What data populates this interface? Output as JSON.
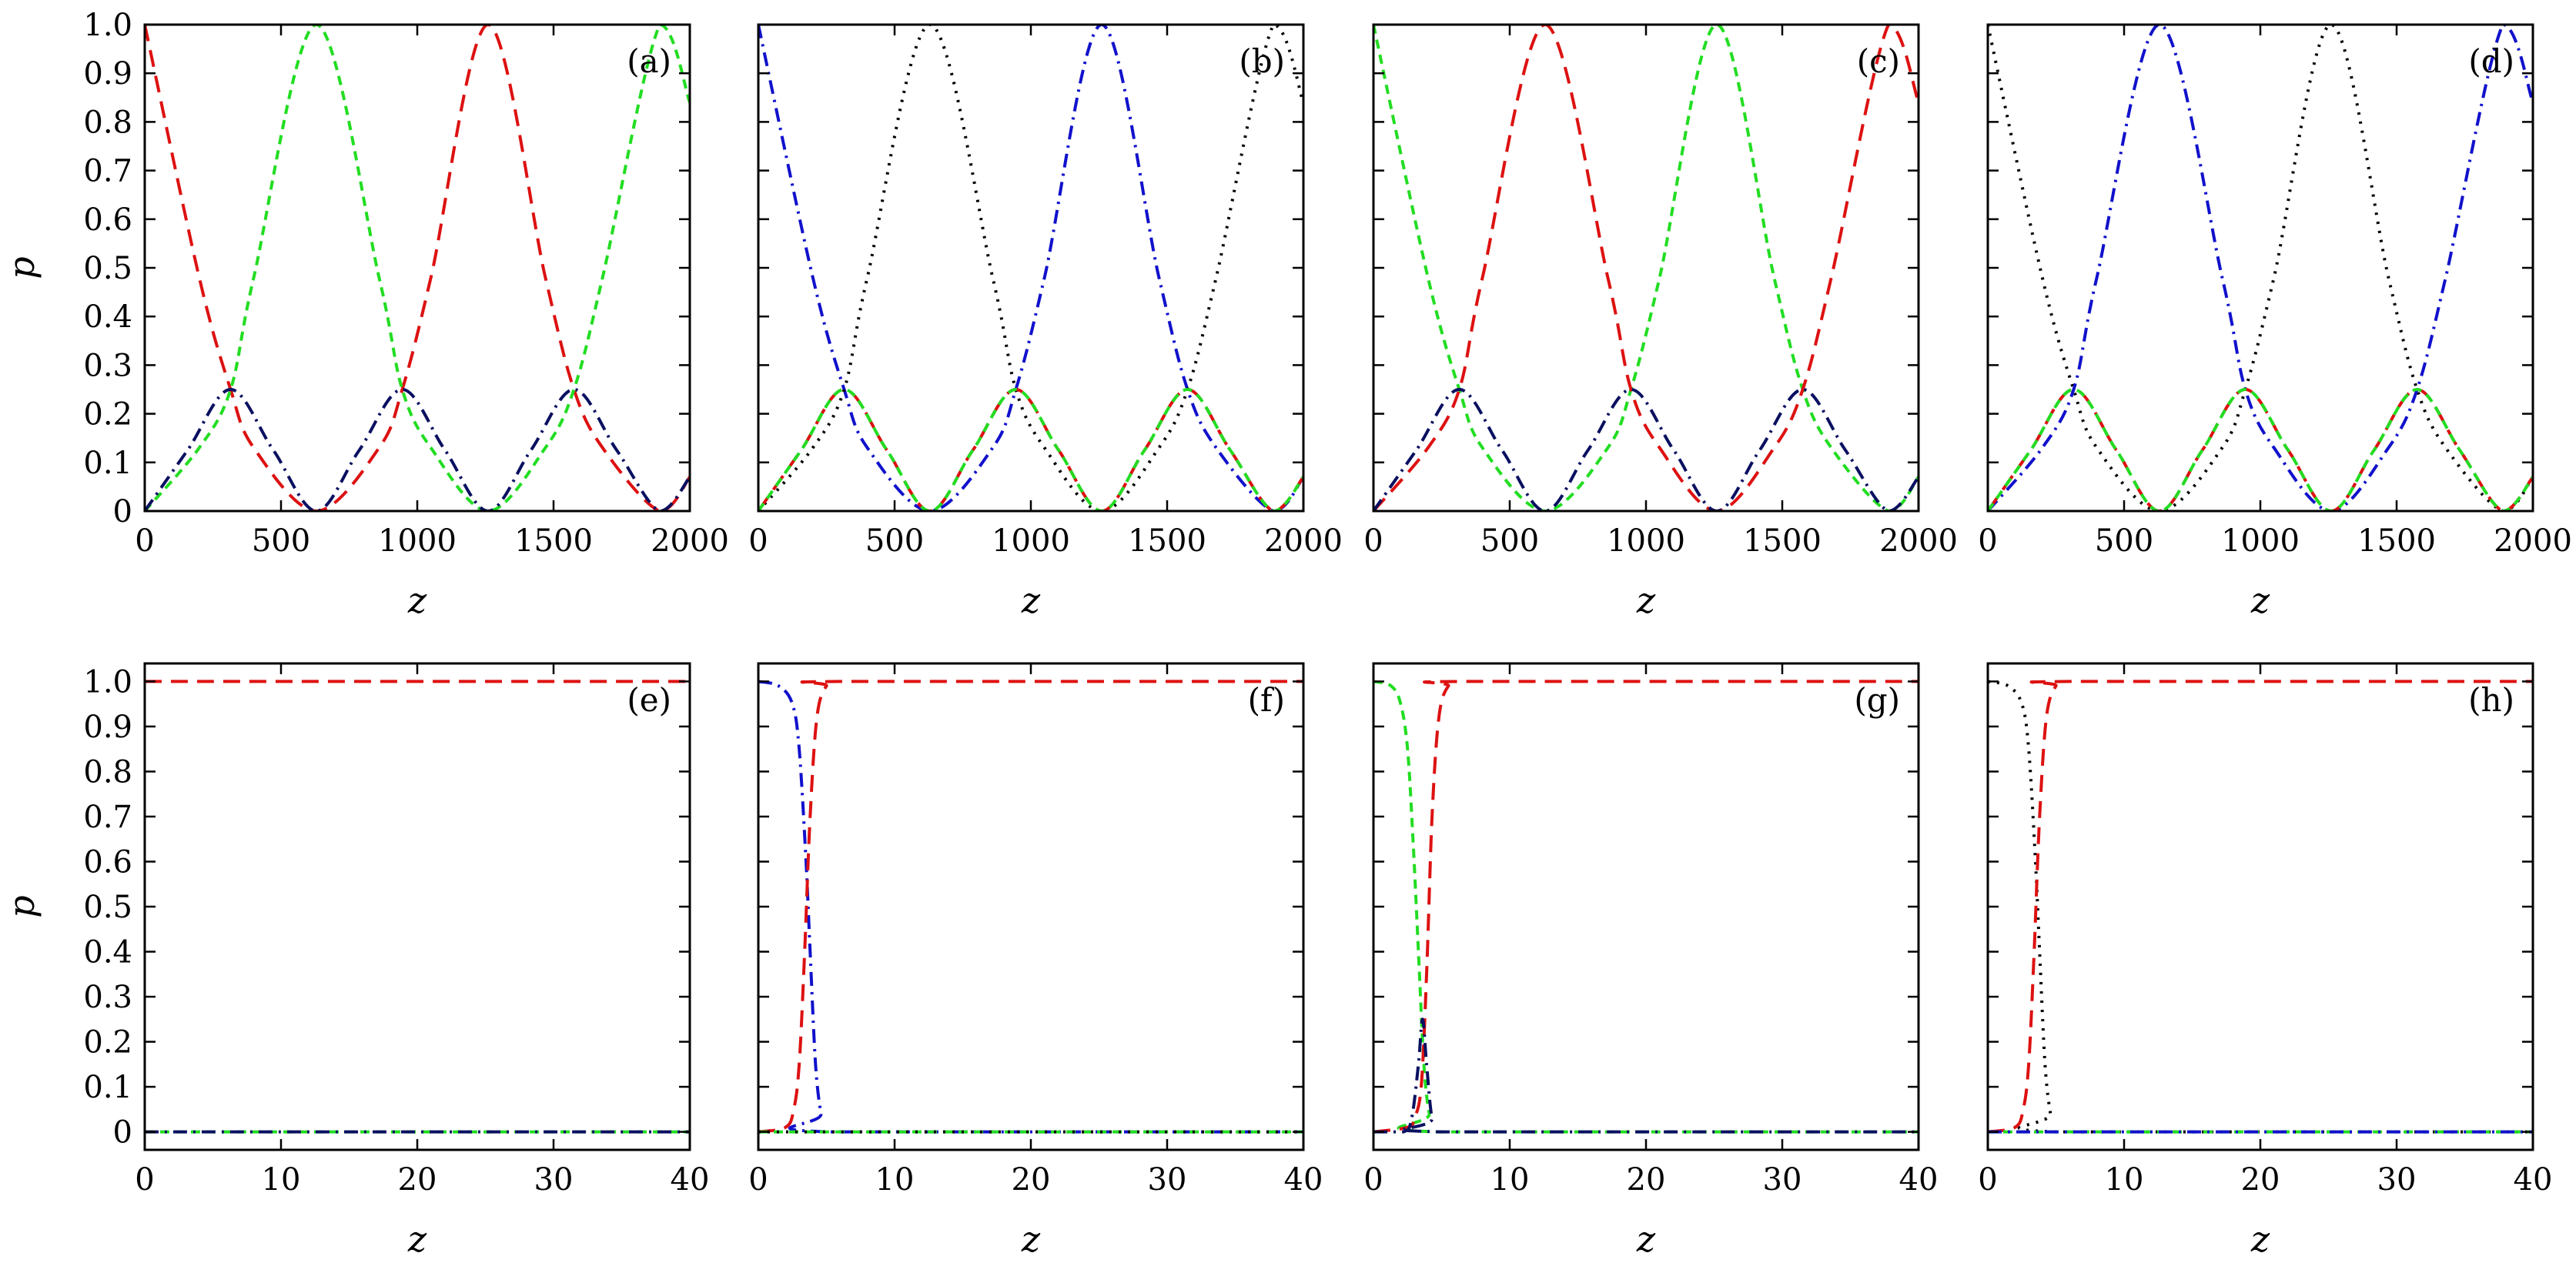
{
  "colors": {
    "red": "#dd1111",
    "green": "#22dd22",
    "blue": "#1111cc",
    "black": "#000000",
    "navy": "#0a1060"
  },
  "chart_data": [
    {
      "type": "line",
      "label": "(a)",
      "xlabel": "z",
      "ylabel": "p",
      "xlim": [
        0,
        2000
      ],
      "ylim": [
        0,
        1
      ],
      "xticks": [
        "0",
        "500",
        "1000",
        "1500",
        "2000"
      ],
      "yticks": [
        "0",
        "0.1",
        "0.2",
        "0.3",
        "0.4",
        "0.5",
        "0.6",
        "0.7",
        "0.8",
        "0.9",
        "1.0"
      ],
      "series": [
        {
          "name": "red-dashed",
          "color": "#dd1111",
          "style": "dashed",
          "x": [
            0,
            200,
            315,
            400,
            630,
            860,
            945,
            1050,
            1260,
            1470,
            1575,
            1680,
            1890,
            2000
          ],
          "y": [
            1.0,
            0.48,
            0.25,
            0.13,
            0.0,
            0.13,
            0.25,
            0.48,
            1.0,
            0.48,
            0.25,
            0.13,
            0.0,
            0.07
          ]
        },
        {
          "name": "green-dotted",
          "color": "#22dd22",
          "style": "short-dash",
          "x": [
            0,
            200,
            315,
            400,
            630,
            860,
            945,
            1050,
            1260,
            1470,
            1575,
            1680,
            1890,
            2000
          ],
          "y": [
            0.0,
            0.13,
            0.25,
            0.48,
            1.0,
            0.48,
            0.25,
            0.13,
            0.0,
            0.13,
            0.25,
            0.48,
            1.0,
            0.84
          ]
        },
        {
          "name": "navy-dashdot",
          "color": "#0a1060",
          "style": "dash-dot",
          "x": [
            0,
            157,
            315,
            472,
            630,
            787,
            945,
            1102,
            1260,
            1417,
            1575,
            1732,
            1890,
            2000
          ],
          "y": [
            0.0,
            0.125,
            0.25,
            0.125,
            0.0,
            0.125,
            0.25,
            0.125,
            0.0,
            0.125,
            0.25,
            0.125,
            0.0,
            0.07
          ]
        }
      ]
    },
    {
      "type": "line",
      "label": "(b)",
      "xlabel": "z",
      "ylabel": "",
      "xlim": [
        0,
        2000
      ],
      "ylim": [
        0,
        1
      ],
      "xticks": [
        "0",
        "500",
        "1000",
        "1500",
        "2000"
      ],
      "yticks": [],
      "series": [
        {
          "name": "blue-dashdot",
          "color": "#1111cc",
          "style": "dash-dot",
          "x": [
            0,
            200,
            315,
            400,
            630,
            860,
            945,
            1050,
            1260,
            1470,
            1575,
            1680,
            1890,
            2000
          ],
          "y": [
            1.0,
            0.48,
            0.25,
            0.13,
            0.0,
            0.13,
            0.25,
            0.48,
            1.0,
            0.48,
            0.25,
            0.13,
            0.0,
            0.07
          ]
        },
        {
          "name": "black-dotted",
          "color": "#000000",
          "style": "dotted",
          "x": [
            0,
            200,
            315,
            400,
            630,
            860,
            945,
            1050,
            1260,
            1470,
            1575,
            1680,
            1890,
            2000
          ],
          "y": [
            0.0,
            0.13,
            0.25,
            0.48,
            1.0,
            0.48,
            0.25,
            0.13,
            0.0,
            0.13,
            0.25,
            0.48,
            1.0,
            0.84
          ]
        },
        {
          "name": "red-dashed",
          "color": "#dd1111",
          "style": "dashed",
          "x": [
            0,
            157,
            315,
            472,
            630,
            787,
            945,
            1102,
            1260,
            1417,
            1575,
            1732,
            1890,
            2000
          ],
          "y": [
            0.0,
            0.125,
            0.25,
            0.125,
            0.0,
            0.125,
            0.25,
            0.125,
            0.0,
            0.125,
            0.25,
            0.125,
            0.0,
            0.07
          ]
        },
        {
          "name": "green-dotted",
          "color": "#22dd22",
          "style": "short-dash",
          "x": [
            0,
            157,
            315,
            472,
            630,
            787,
            945,
            1102,
            1260,
            1417,
            1575,
            1732,
            1890,
            2000
          ],
          "y": [
            0.0,
            0.125,
            0.25,
            0.125,
            0.0,
            0.125,
            0.25,
            0.125,
            0.0,
            0.125,
            0.25,
            0.125,
            0.0,
            0.07
          ]
        }
      ]
    },
    {
      "type": "line",
      "label": "(c)",
      "xlabel": "z",
      "ylabel": "",
      "xlim": [
        0,
        2000
      ],
      "ylim": [
        0,
        1
      ],
      "xticks": [
        "0",
        "500",
        "1000",
        "1500",
        "2000"
      ],
      "yticks": [],
      "series": [
        {
          "name": "green-dotted",
          "color": "#22dd22",
          "style": "short-dash",
          "x": [
            0,
            200,
            315,
            400,
            630,
            860,
            945,
            1050,
            1260,
            1470,
            1575,
            1680,
            1890,
            2000
          ],
          "y": [
            1.0,
            0.48,
            0.25,
            0.13,
            0.0,
            0.13,
            0.25,
            0.48,
            1.0,
            0.48,
            0.25,
            0.13,
            0.0,
            0.07
          ]
        },
        {
          "name": "red-dashed",
          "color": "#dd1111",
          "style": "dashed",
          "x": [
            0,
            200,
            315,
            400,
            630,
            860,
            945,
            1050,
            1260,
            1470,
            1575,
            1680,
            1890,
            2000
          ],
          "y": [
            0.0,
            0.13,
            0.25,
            0.48,
            1.0,
            0.48,
            0.25,
            0.13,
            0.0,
            0.13,
            0.25,
            0.48,
            1.0,
            0.84
          ]
        },
        {
          "name": "navy-dashdot",
          "color": "#0a1060",
          "style": "dash-dot",
          "x": [
            0,
            157,
            315,
            472,
            630,
            787,
            945,
            1102,
            1260,
            1417,
            1575,
            1732,
            1890,
            2000
          ],
          "y": [
            0.0,
            0.125,
            0.25,
            0.125,
            0.0,
            0.125,
            0.25,
            0.125,
            0.0,
            0.125,
            0.25,
            0.125,
            0.0,
            0.07
          ]
        }
      ]
    },
    {
      "type": "line",
      "label": "(d)",
      "xlabel": "z",
      "ylabel": "",
      "xlim": [
        0,
        2000
      ],
      "ylim": [
        0,
        1
      ],
      "xticks": [
        "0",
        "500",
        "1000",
        "1500",
        "2000"
      ],
      "yticks": [],
      "series": [
        {
          "name": "black-dotted",
          "color": "#000000",
          "style": "dotted",
          "x": [
            0,
            200,
            315,
            400,
            630,
            860,
            945,
            1050,
            1260,
            1470,
            1575,
            1680,
            1890,
            2000
          ],
          "y": [
            1.0,
            0.48,
            0.25,
            0.13,
            0.0,
            0.13,
            0.25,
            0.48,
            1.0,
            0.48,
            0.25,
            0.13,
            0.0,
            0.07
          ]
        },
        {
          "name": "blue-dashdot",
          "color": "#1111cc",
          "style": "dash-dot",
          "x": [
            0,
            200,
            315,
            400,
            630,
            860,
            945,
            1050,
            1260,
            1470,
            1575,
            1680,
            1890,
            2000
          ],
          "y": [
            0.0,
            0.13,
            0.25,
            0.48,
            1.0,
            0.48,
            0.25,
            0.13,
            0.0,
            0.13,
            0.25,
            0.48,
            1.0,
            0.84
          ]
        },
        {
          "name": "red-dashed",
          "color": "#dd1111",
          "style": "dashed",
          "x": [
            0,
            157,
            315,
            472,
            630,
            787,
            945,
            1102,
            1260,
            1417,
            1575,
            1732,
            1890,
            2000
          ],
          "y": [
            0.0,
            0.125,
            0.25,
            0.125,
            0.0,
            0.125,
            0.25,
            0.125,
            0.0,
            0.125,
            0.25,
            0.125,
            0.0,
            0.07
          ]
        },
        {
          "name": "green-dotted",
          "color": "#22dd22",
          "style": "short-dash",
          "x": [
            0,
            157,
            315,
            472,
            630,
            787,
            945,
            1102,
            1260,
            1417,
            1575,
            1732,
            1890,
            2000
          ],
          "y": [
            0.0,
            0.125,
            0.25,
            0.125,
            0.0,
            0.125,
            0.25,
            0.125,
            0.0,
            0.125,
            0.25,
            0.125,
            0.0,
            0.07
          ]
        }
      ]
    },
    {
      "type": "line",
      "label": "(e)",
      "xlabel": "z",
      "ylabel": "p",
      "xlim": [
        0,
        40
      ],
      "ylim": [
        -0.04,
        1.04
      ],
      "xticks": [
        "0",
        "10",
        "20",
        "30",
        "40"
      ],
      "yticks": [
        "0",
        "0.1",
        "0.2",
        "0.3",
        "0.4",
        "0.5",
        "0.6",
        "0.7",
        "0.8",
        "0.9",
        "1.0"
      ],
      "series": [
        {
          "name": "red-dashed",
          "color": "#dd1111",
          "style": "dashed",
          "x": [
            0,
            40
          ],
          "y": [
            1.0,
            1.0
          ]
        },
        {
          "name": "green-dotted",
          "color": "#22dd22",
          "style": "short-dash",
          "x": [
            0,
            40
          ],
          "y": [
            0.0,
            0.0
          ]
        },
        {
          "name": "navy-dashdot",
          "color": "#0a1060",
          "style": "dash-dot",
          "x": [
            0,
            40
          ],
          "y": [
            0.0,
            0.0
          ]
        }
      ]
    },
    {
      "type": "line",
      "label": "(f)",
      "xlabel": "z",
      "ylabel": "",
      "xlim": [
        0,
        40
      ],
      "ylim": [
        -0.04,
        1.04
      ],
      "xticks": [
        "0",
        "10",
        "20",
        "30",
        "40"
      ],
      "yticks": [],
      "series": [
        {
          "name": "blue-dashdot",
          "color": "#1111cc",
          "style": "dash-dot",
          "x": [
            0,
            1.5,
            2.5,
            3.0,
            3.5,
            3.8,
            4.2,
            4.6,
            5.0,
            40
          ],
          "y": [
            1.0,
            0.99,
            0.95,
            0.85,
            0.6,
            0.4,
            0.15,
            0.04,
            0.0,
            0.0
          ]
        },
        {
          "name": "red-dashed",
          "color": "#dd1111",
          "style": "dashed",
          "x": [
            0,
            2.0,
            2.6,
            3.0,
            3.4,
            3.8,
            4.3,
            5.0,
            6.0,
            40
          ],
          "y": [
            0.0,
            0.01,
            0.05,
            0.15,
            0.4,
            0.7,
            0.92,
            0.99,
            1.0,
            1.0
          ]
        },
        {
          "name": "green-dotted",
          "color": "#22dd22",
          "style": "short-dash",
          "x": [
            0,
            40
          ],
          "y": [
            0.0,
            0.0
          ]
        },
        {
          "name": "black-dotted",
          "color": "#000000",
          "style": "dotted",
          "x": [
            0,
            40
          ],
          "y": [
            0.0,
            0.0
          ]
        }
      ]
    },
    {
      "type": "line",
      "label": "(g)",
      "xlabel": "z",
      "ylabel": "",
      "xlim": [
        0,
        40
      ],
      "ylim": [
        -0.04,
        1.04
      ],
      "xticks": [
        "0",
        "10",
        "20",
        "30",
        "40"
      ],
      "yticks": [],
      "series": [
        {
          "name": "green-dotted",
          "color": "#22dd22",
          "style": "short-dash",
          "x": [
            0,
            1.3,
            2.0,
            2.5,
            2.9,
            3.3,
            3.7,
            4.1,
            4.6,
            40
          ],
          "y": [
            1.0,
            0.99,
            0.95,
            0.85,
            0.65,
            0.4,
            0.15,
            0.04,
            0.0,
            0.0
          ]
        },
        {
          "name": "red-dashed",
          "color": "#dd1111",
          "style": "dashed",
          "x": [
            0,
            2.5,
            3.0,
            3.5,
            3.9,
            4.3,
            4.8,
            5.5,
            6.5,
            40
          ],
          "y": [
            0.0,
            0.01,
            0.03,
            0.1,
            0.35,
            0.7,
            0.92,
            0.99,
            1.0,
            1.0
          ]
        },
        {
          "name": "navy-dashdot",
          "color": "#0a1060",
          "style": "dash-dot",
          "x": [
            0,
            2.2,
            2.8,
            3.3,
            3.6,
            3.9,
            4.3,
            4.9,
            40
          ],
          "y": [
            0.0,
            0.0,
            0.03,
            0.15,
            0.25,
            0.15,
            0.03,
            0.0,
            0.0
          ]
        }
      ]
    },
    {
      "type": "line",
      "label": "(h)",
      "xlabel": "z",
      "ylabel": "",
      "xlim": [
        0,
        40
      ],
      "ylim": [
        -0.04,
        1.04
      ],
      "xticks": [
        "0",
        "10",
        "20",
        "30",
        "40"
      ],
      "yticks": [],
      "series": [
        {
          "name": "black-dotted",
          "color": "#000000",
          "style": "dotted",
          "x": [
            0,
            1.5,
            2.5,
            3.0,
            3.5,
            3.8,
            4.2,
            4.6,
            5.0,
            40
          ],
          "y": [
            1.0,
            0.99,
            0.95,
            0.85,
            0.6,
            0.4,
            0.15,
            0.04,
            0.0,
            0.0
          ]
        },
        {
          "name": "red-dashed",
          "color": "#dd1111",
          "style": "dashed",
          "x": [
            0,
            2.0,
            2.6,
            3.0,
            3.4,
            3.8,
            4.3,
            5.0,
            6.0,
            40
          ],
          "y": [
            0.0,
            0.01,
            0.05,
            0.15,
            0.4,
            0.7,
            0.92,
            0.99,
            1.0,
            1.0
          ]
        },
        {
          "name": "green-dotted",
          "color": "#22dd22",
          "style": "short-dash",
          "x": [
            0,
            40
          ],
          "y": [
            0.0,
            0.0
          ]
        },
        {
          "name": "blue-dashdot",
          "color": "#1111cc",
          "style": "dash-dot",
          "x": [
            0,
            40
          ],
          "y": [
            0.0,
            0.0
          ]
        }
      ]
    }
  ]
}
